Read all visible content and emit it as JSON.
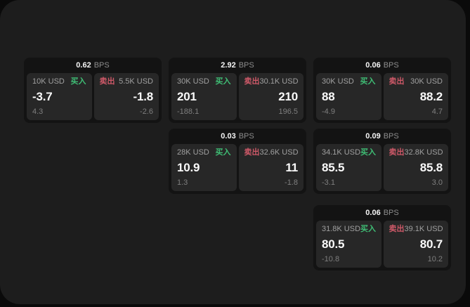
{
  "ui": {
    "bps_suffix": "BPS",
    "buy_label": "买入",
    "sell_label": "卖出"
  },
  "colors": {
    "outer_bg": "#0a0a0a",
    "page_bg": "#1d1d1d",
    "card_bg": "#131313",
    "panel_bg": "#272727",
    "buy_green": "#3fbe75",
    "sell_red": "#ce5968"
  },
  "cards": [
    {
      "bps": "0.62",
      "buy": {
        "size": "10K USD",
        "value": "-3.7",
        "sub": "4.3"
      },
      "sell": {
        "size": "5.5K USD",
        "value": "-1.8",
        "sub": "-2.6"
      }
    },
    {
      "bps": "2.92",
      "buy": {
        "size": "30K USD",
        "value": "201",
        "sub": "-188.1"
      },
      "sell": {
        "size": "30.1K USD",
        "value": "210",
        "sub": "196.5"
      }
    },
    {
      "bps": "0.06",
      "buy": {
        "size": "30K USD",
        "value": "88",
        "sub": "-4.9"
      },
      "sell": {
        "size": "30K USD",
        "value": "88.2",
        "sub": "4.7"
      }
    },
    {
      "bps": "0.03",
      "buy": {
        "size": "28K USD",
        "value": "10.9",
        "sub": "1.3"
      },
      "sell": {
        "size": "32.6K USD",
        "value": "11",
        "sub": "-1.8"
      }
    },
    {
      "bps": "0.09",
      "buy": {
        "size": "34.1K USD",
        "value": "85.5",
        "sub": "-3.1"
      },
      "sell": {
        "size": "32.8K USD",
        "value": "85.8",
        "sub": "3.0"
      }
    },
    {
      "bps": "0.06",
      "buy": {
        "size": "31.8K USD",
        "value": "80.5",
        "sub": "-10.8"
      },
      "sell": {
        "size": "39.1K USD",
        "value": "80.7",
        "sub": "10.2"
      }
    }
  ]
}
